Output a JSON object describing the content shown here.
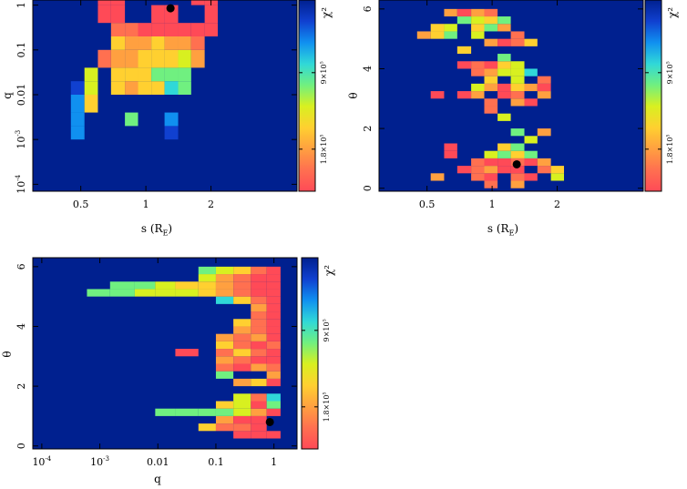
{
  "colors": {
    "background": "#00208f",
    "colormap": [
      "#ff4a57",
      "#ff7050",
      "#ffa040",
      "#ffd030",
      "#d8f020",
      "#70f080",
      "#30d8d8",
      "#1090f0",
      "#1040d0",
      "#00208f"
    ],
    "best_fit_marker": "#000000"
  },
  "chart_data": [
    {
      "type": "heatmap",
      "xlabel": "s (R_E)",
      "ylabel": "q",
      "x_scale": "log",
      "y_scale": "log",
      "xlim": [
        0.3,
        5.0
      ],
      "ylim": [
        7e-05,
        1.3
      ],
      "x_ticks": [
        {
          "value": 0.5,
          "label": "0.5"
        },
        {
          "value": 1,
          "label": "1"
        },
        {
          "value": 2,
          "label": "2"
        }
      ],
      "y_ticks": [
        {
          "value": 1,
          "label": "1"
        },
        {
          "value": 0.1,
          "label": "0.1"
        },
        {
          "value": 0.01,
          "label": "0.01"
        },
        {
          "value": 0.001,
          "label": "10^-3"
        },
        {
          "value": 0.0001,
          "label": "10^-4"
        }
      ],
      "colorbar": {
        "label": "χ²",
        "ticks": [
          "1.8×10^5",
          "9×10^5"
        ]
      },
      "best_fit": {
        "x": 1.3,
        "y": 0.85
      },
      "x_edges": [
        0.39,
        0.45,
        0.52,
        0.6,
        0.69,
        0.8,
        0.92,
        1.06,
        1.22,
        1.41,
        1.62,
        1.87,
        2.15,
        2.48
      ],
      "y_edges": [
        0.0001,
        0.0002,
        0.0004,
        0.001,
        0.002,
        0.004,
        0.01,
        0.02,
        0.04,
        0.1,
        0.2,
        0.4,
        1.0,
        1.3
      ],
      "cells": [
        [
          0,
          0,
          0,
          0,
          0,
          0,
          0,
          0,
          0,
          0,
          0,
          0,
          0
        ],
        [
          0,
          0,
          0,
          0,
          0,
          0,
          0,
          0,
          0,
          0,
          0,
          0,
          0
        ],
        [
          0,
          0,
          0,
          0,
          0,
          0,
          0,
          0,
          0,
          0,
          0,
          0,
          0
        ],
        [
          0,
          8,
          0,
          0,
          0,
          0,
          0,
          0,
          9,
          0,
          0,
          0,
          0
        ],
        [
          0,
          8,
          0,
          0,
          0,
          6,
          0,
          0,
          8,
          0,
          0,
          0,
          0
        ],
        [
          0,
          8,
          4,
          0,
          0,
          0,
          0,
          0,
          0,
          0,
          0,
          0,
          0
        ],
        [
          0,
          9,
          5,
          0,
          4,
          3,
          4,
          4,
          7,
          6,
          0,
          0,
          0
        ],
        [
          0,
          0,
          5,
          0,
          4,
          4,
          4,
          6,
          6,
          6,
          0,
          0,
          0
        ],
        [
          0,
          0,
          0,
          2,
          3,
          3,
          4,
          4,
          4,
          5,
          3,
          0,
          0
        ],
        [
          0,
          0,
          0,
          0,
          4,
          3,
          3,
          4,
          3,
          3,
          2,
          0,
          0
        ],
        [
          0,
          0,
          0,
          0,
          2,
          2,
          1,
          1,
          1,
          1,
          1,
          1,
          0
        ],
        [
          0,
          0,
          0,
          1,
          1,
          0,
          0,
          1,
          1,
          0,
          0,
          1,
          0
        ],
        [
          0,
          0,
          0,
          1,
          1,
          0,
          0,
          0,
          0,
          0,
          1,
          1,
          0
        ]
      ]
    },
    {
      "type": "heatmap",
      "xlabel": "s (R_E)",
      "ylabel": "θ",
      "x_scale": "log",
      "y_scale": "linear",
      "xlim": [
        0.3,
        5.0
      ],
      "ylim": [
        -0.1,
        6.3
      ],
      "x_ticks": [
        {
          "value": 0.5,
          "label": "0.5"
        },
        {
          "value": 1,
          "label": "1"
        },
        {
          "value": 2,
          "label": "2"
        }
      ],
      "y_ticks": [
        {
          "value": 0,
          "label": "0"
        },
        {
          "value": 2,
          "label": "2"
        },
        {
          "value": 4,
          "label": "4"
        },
        {
          "value": 6,
          "label": "6"
        }
      ],
      "colorbar": {
        "label": "χ²",
        "ticks": [
          "1.8×10^5",
          "9×10^5"
        ]
      },
      "best_fit": {
        "x": 1.3,
        "y": 0.8
      },
      "x_edges": [
        0.39,
        0.45,
        0.52,
        0.6,
        0.69,
        0.8,
        0.92,
        1.06,
        1.22,
        1.41,
        1.62,
        1.87,
        2.15,
        2.48
      ],
      "y_edges": [
        0.0,
        0.25,
        0.5,
        0.75,
        1.0,
        1.25,
        1.5,
        1.75,
        2.0,
        2.25,
        2.5,
        2.75,
        3.0,
        3.25,
        3.5,
        3.75,
        4.0,
        4.25,
        4.5,
        4.75,
        5.0,
        5.25,
        5.5,
        5.75,
        6.0,
        6.3
      ],
      "cells": [
        [
          0,
          0,
          0,
          0,
          0,
          0,
          2,
          0,
          3,
          0,
          0,
          0,
          0
        ],
        [
          0,
          0,
          3,
          0,
          0,
          2,
          1,
          0,
          2,
          1,
          0,
          5,
          0
        ],
        [
          0,
          0,
          0,
          0,
          1,
          2,
          3,
          1,
          1,
          0,
          2,
          4,
          0
        ],
        [
          0,
          0,
          0,
          0,
          0,
          2,
          1,
          1,
          2,
          1,
          3,
          0,
          0
        ],
        [
          0,
          0,
          0,
          1,
          0,
          0,
          5,
          6,
          4,
          6,
          0,
          0,
          0
        ],
        [
          0,
          0,
          0,
          1,
          0,
          0,
          0,
          4,
          6,
          0,
          0,
          0,
          0
        ],
        [
          0,
          0,
          0,
          0,
          0,
          0,
          0,
          0,
          0,
          5,
          0,
          0,
          0
        ],
        [
          0,
          0,
          0,
          0,
          0,
          0,
          0,
          0,
          6,
          0,
          3,
          0,
          0
        ],
        [
          0,
          0,
          0,
          0,
          0,
          0,
          0,
          0,
          0,
          0,
          0,
          0,
          0
        ],
        [
          0,
          0,
          0,
          0,
          0,
          0,
          0,
          5,
          0,
          0,
          0,
          0,
          0
        ],
        [
          0,
          0,
          0,
          0,
          0,
          0,
          2,
          0,
          0,
          0,
          0,
          0,
          0
        ],
        [
          0,
          0,
          0,
          0,
          0,
          0,
          2,
          0,
          3,
          1,
          0,
          0,
          0
        ],
        [
          0,
          0,
          1,
          0,
          1,
          3,
          0,
          1,
          2,
          0,
          3,
          0,
          0
        ],
        [
          0,
          0,
          0,
          0,
          0,
          5,
          3,
          1,
          4,
          3,
          1,
          0,
          0
        ],
        [
          0,
          0,
          0,
          0,
          0,
          0,
          4,
          0,
          5,
          0,
          2,
          0,
          0
        ],
        [
          0,
          0,
          0,
          0,
          0,
          2,
          3,
          5,
          5,
          7,
          0,
          0,
          0
        ],
        [
          0,
          0,
          0,
          0,
          1,
          2,
          1,
          4,
          5,
          0,
          0,
          0,
          0
        ],
        [
          0,
          0,
          0,
          0,
          0,
          0,
          0,
          6,
          0,
          0,
          0,
          0,
          0
        ],
        [
          0,
          0,
          0,
          0,
          4,
          0,
          0,
          0,
          0,
          0,
          0,
          0,
          0
        ],
        [
          0,
          0,
          0,
          0,
          0,
          0,
          3,
          1,
          2,
          4,
          0,
          0,
          0
        ],
        [
          0,
          3,
          4,
          6,
          0,
          5,
          0,
          0,
          2,
          0,
          0,
          0,
          0
        ],
        [
          0,
          0,
          4,
          5,
          0,
          4,
          6,
          3,
          0,
          0,
          0,
          0,
          0
        ],
        [
          0,
          0,
          0,
          0,
          6,
          5,
          4,
          6,
          0,
          0,
          0,
          0,
          0
        ],
        [
          0,
          0,
          0,
          3,
          1,
          3,
          2,
          0,
          0,
          0,
          0,
          0,
          0
        ],
        [
          0,
          0,
          0,
          0,
          0,
          0,
          0,
          0,
          0,
          0,
          0,
          0,
          0
        ]
      ]
    },
    {
      "type": "heatmap",
      "xlabel": "q",
      "ylabel": "θ",
      "x_scale": "log",
      "y_scale": "linear",
      "xlim": [
        7e-05,
        2.5
      ],
      "ylim": [
        -0.1,
        6.3
      ],
      "x_ticks": [
        {
          "value": 0.0001,
          "label": "10^-4"
        },
        {
          "value": 0.001,
          "label": "10^-3"
        },
        {
          "value": 0.01,
          "label": "0.01"
        },
        {
          "value": 0.1,
          "label": "0.1"
        },
        {
          "value": 1,
          "label": "1"
        }
      ],
      "y_ticks": [
        {
          "value": 0,
          "label": "0"
        },
        {
          "value": 2,
          "label": "2"
        },
        {
          "value": 4,
          "label": "4"
        },
        {
          "value": 6,
          "label": "6"
        }
      ],
      "colorbar": {
        "label": "χ²",
        "ticks": [
          "1.8×10^5",
          "9×10^5"
        ]
      },
      "best_fit": {
        "x": 0.85,
        "y": 0.8
      },
      "x_edges": [
        0.0001,
        0.00025,
        0.0006,
        0.0015,
        0.004,
        0.009,
        0.02,
        0.05,
        0.1,
        0.2,
        0.4,
        0.75,
        1.3
      ],
      "y_edges": [
        0.0,
        0.25,
        0.5,
        0.75,
        1.0,
        1.25,
        1.5,
        1.75,
        2.0,
        2.25,
        2.5,
        2.75,
        3.0,
        3.25,
        3.5,
        3.75,
        4.0,
        4.25,
        4.5,
        4.75,
        5.0,
        5.25,
        5.5,
        5.75,
        6.0,
        6.3
      ],
      "cells": [
        [
          0,
          0,
          0,
          0,
          0,
          0,
          0,
          0,
          0,
          0,
          0,
          0
        ],
        [
          0,
          0,
          0,
          0,
          0,
          0,
          0,
          0,
          0,
          1,
          1,
          1
        ],
        [
          0,
          0,
          0,
          0,
          0,
          0,
          0,
          4,
          2,
          2,
          1,
          0
        ],
        [
          0,
          0,
          0,
          0,
          0,
          0,
          0,
          0,
          3,
          1,
          1,
          0
        ],
        [
          0,
          0,
          0,
          0,
          0,
          6,
          6,
          6,
          6,
          5,
          3,
          1
        ],
        [
          0,
          0,
          0,
          0,
          0,
          0,
          0,
          0,
          4,
          5,
          1,
          6
        ],
        [
          0,
          0,
          0,
          0,
          0,
          0,
          0,
          0,
          0,
          5,
          2,
          7
        ],
        [
          0,
          0,
          0,
          0,
          0,
          0,
          0,
          0,
          0,
          0,
          0,
          0
        ],
        [
          0,
          0,
          0,
          0,
          0,
          0,
          0,
          0,
          0,
          3,
          4,
          1
        ],
        [
          0,
          0,
          0,
          0,
          0,
          0,
          0,
          0,
          6,
          0,
          0,
          3
        ],
        [
          0,
          0,
          0,
          0,
          0,
          0,
          0,
          0,
          2,
          1,
          3,
          2
        ],
        [
          0,
          0,
          0,
          0,
          0,
          0,
          0,
          0,
          3,
          2,
          1,
          1
        ],
        [
          0,
          0,
          0,
          0,
          0,
          0,
          1,
          0,
          2,
          4,
          2,
          1
        ],
        [
          0,
          0,
          0,
          0,
          0,
          0,
          0,
          0,
          4,
          2,
          1,
          2
        ],
        [
          0,
          0,
          0,
          0,
          0,
          0,
          0,
          0,
          3,
          2,
          3,
          1
        ],
        [
          0,
          0,
          0,
          0,
          0,
          0,
          0,
          0,
          0,
          3,
          2,
          1
        ],
        [
          0,
          0,
          0,
          0,
          0,
          0,
          0,
          0,
          0,
          4,
          2,
          1
        ],
        [
          0,
          0,
          0,
          0,
          0,
          0,
          0,
          0,
          0,
          0,
          2,
          1
        ],
        [
          0,
          0,
          0,
          0,
          0,
          0,
          0,
          0,
          0,
          0,
          3,
          1
        ],
        [
          0,
          0,
          0,
          0,
          0,
          0,
          0,
          0,
          7,
          4,
          2,
          1
        ],
        [
          0,
          0,
          6,
          6,
          5,
          5,
          5,
          4,
          3,
          2,
          1,
          1
        ],
        [
          0,
          0,
          0,
          6,
          6,
          5,
          4,
          4,
          3,
          2,
          1,
          1
        ],
        [
          0,
          0,
          0,
          0,
          0,
          0,
          0,
          5,
          3,
          2,
          1,
          1
        ],
        [
          0,
          0,
          0,
          0,
          0,
          0,
          0,
          6,
          5,
          4,
          2,
          1
        ],
        [
          0,
          0,
          0,
          0,
          0,
          0,
          0,
          0,
          0,
          0,
          0,
          0
        ]
      ]
    }
  ]
}
